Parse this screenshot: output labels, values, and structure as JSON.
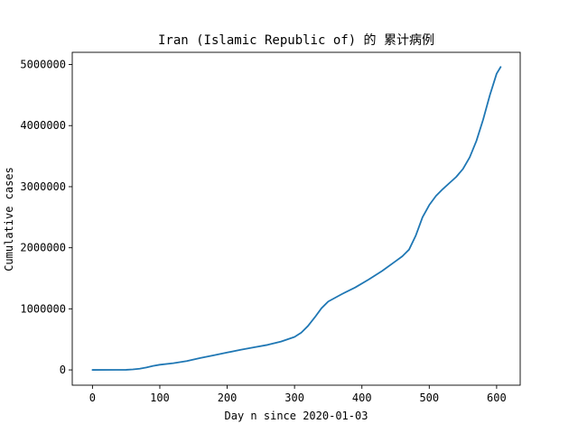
{
  "chart_data": {
    "type": "line",
    "title": "Iran (Islamic Republic of) 的 累计病例",
    "xlabel": "Day n since 2020-01-03",
    "ylabel": "Cumulative cases",
    "xlim": [
      -30,
      635
    ],
    "ylim": [
      -250000,
      5200000
    ],
    "xticks": [
      0,
      100,
      200,
      300,
      400,
      500,
      600
    ],
    "xtick_labels": [
      "0",
      "100",
      "200",
      "300",
      "400",
      "500",
      "600"
    ],
    "yticks": [
      0,
      1000000,
      2000000,
      3000000,
      4000000,
      5000000
    ],
    "ytick_labels": [
      "0",
      "1000000",
      "2000000",
      "3000000",
      "4000000",
      "5000000"
    ],
    "grid": false,
    "series": [
      {
        "color": "#1f77b4",
        "x": [
          0,
          50,
          60,
          70,
          80,
          90,
          100,
          120,
          140,
          160,
          180,
          200,
          220,
          240,
          260,
          280,
          300,
          310,
          320,
          330,
          340,
          350,
          370,
          390,
          410,
          430,
          450,
          460,
          470,
          480,
          490,
          500,
          510,
          520,
          530,
          540,
          550,
          560,
          570,
          580,
          590,
          600,
          606
        ],
        "y": [
          0,
          2000,
          8000,
          20000,
          40000,
          65000,
          85000,
          110000,
          145000,
          195000,
          240000,
          285000,
          330000,
          370000,
          410000,
          465000,
          540000,
          610000,
          720000,
          860000,
          1010000,
          1120000,
          1240000,
          1350000,
          1480000,
          1620000,
          1780000,
          1860000,
          1970000,
          2200000,
          2500000,
          2700000,
          2850000,
          2960000,
          3060000,
          3160000,
          3290000,
          3480000,
          3750000,
          4100000,
          4500000,
          4850000,
          4960000
        ]
      }
    ]
  }
}
